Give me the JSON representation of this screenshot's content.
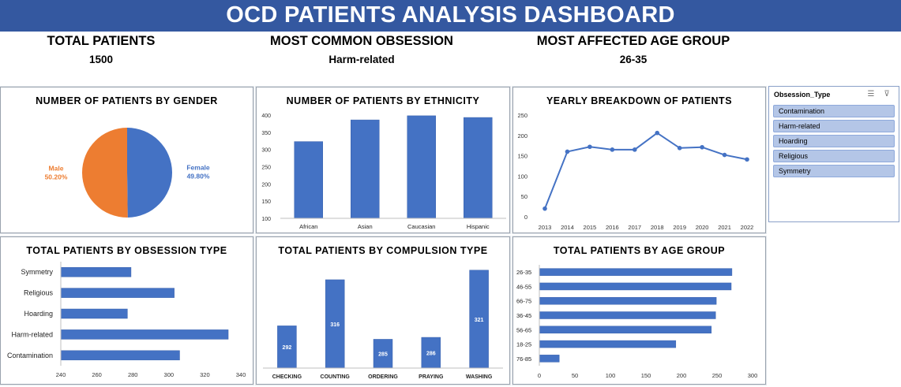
{
  "title": "OCD PATIENTS ANALYSIS DASHBOARD",
  "kpis": [
    {
      "label": "TOTAL PATIENTS",
      "value": "1500"
    },
    {
      "label": "MOST COMMON OBSESSION",
      "value": "Harm-related"
    },
    {
      "label": "MOST AFFECTED AGE GROUP",
      "value": "26-35"
    }
  ],
  "colors": {
    "banner": "#3458a0",
    "bar": "#4472c4",
    "female": "#4472c4",
    "male": "#ed7d31",
    "slicer_item": "#b4c6e7"
  },
  "slicer": {
    "header": "Obsession_Type",
    "icons": [
      "multi-select-icon",
      "clear-filter-icon"
    ],
    "items": [
      "Contamination",
      "Harm-related",
      "Hoarding",
      "Religious",
      "Symmetry"
    ]
  },
  "chart_data": [
    {
      "id": "gender",
      "type": "pie",
      "title": "NUMBER OF PATIENTS BY GENDER",
      "labels": [
        "Female",
        "Male"
      ],
      "values": [
        49.8,
        50.2
      ],
      "value_labels": [
        "49.80%",
        "50.20%"
      ],
      "colors": [
        "#4472c4",
        "#ed7d31"
      ]
    },
    {
      "id": "ethnicity",
      "type": "bar",
      "title": "NUMBER OF PATIENTS BY ETHNICITY",
      "categories": [
        "African",
        "Asian",
        "Caucasian",
        "Hispanic"
      ],
      "values": [
        323,
        386,
        398,
        393
      ],
      "ylim": [
        100,
        400
      ],
      "yticks": [
        100,
        150,
        200,
        250,
        300,
        350,
        400
      ],
      "grid": false
    },
    {
      "id": "yearly",
      "type": "line",
      "title": "YEARLY BREAKDOWN OF PATIENTS",
      "categories": [
        "2013",
        "2014",
        "2015",
        "2016",
        "2017",
        "2018",
        "2019",
        "2020",
        "2021",
        "2022"
      ],
      "values": [
        20,
        160,
        172,
        165,
        165,
        206,
        169,
        171,
        152,
        141
      ],
      "ylim": [
        0,
        250
      ],
      "yticks": [
        0,
        50,
        100,
        150,
        200,
        250
      ],
      "grid": false
    },
    {
      "id": "obsession",
      "type": "bar",
      "orientation": "horizontal",
      "title": "TOTAL PATIENTS BY OBSESSION TYPE",
      "categories": [
        "Symmetry",
        "Religious",
        "Hoarding",
        "Harm-related",
        "Contamination"
      ],
      "values": [
        279,
        303,
        277,
        333,
        306
      ],
      "xlim": [
        240,
        340
      ],
      "xticks": [
        240,
        260,
        280,
        300,
        320,
        340
      ],
      "grid": false
    },
    {
      "id": "compulsion",
      "type": "bar",
      "title": "TOTAL PATIENTS BY COMPULSION TYPE",
      "categories": [
        "CHECKING",
        "COUNTING",
        "ORDERING",
        "PRAYING",
        "WASHING"
      ],
      "values": [
        292,
        316,
        285,
        286,
        321
      ],
      "value_labels": [
        "292",
        "316",
        "285",
        "286",
        "321"
      ],
      "ylim": [
        270,
        325
      ],
      "grid": false
    },
    {
      "id": "age",
      "type": "bar",
      "orientation": "horizontal",
      "title": "TOTAL PATIENTS BY AGE GROUP",
      "categories": [
        "26-35",
        "46-55",
        "66-75",
        "36-45",
        "56-65",
        "18-25",
        "76-85"
      ],
      "values": [
        271,
        270,
        249,
        248,
        242,
        192,
        28
      ],
      "xlim": [
        0,
        300
      ],
      "xticks": [
        0,
        50,
        100,
        150,
        200,
        250,
        300
      ],
      "grid": false
    }
  ]
}
